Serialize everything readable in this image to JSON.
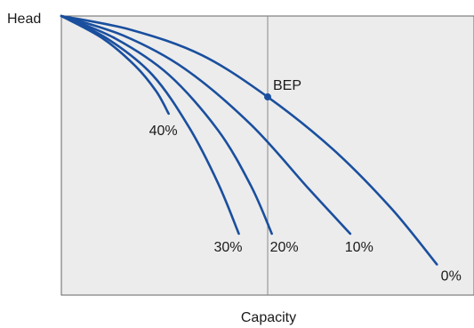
{
  "chart_data": {
    "type": "line",
    "xlabel": "Capacity",
    "ylabel": "Head",
    "xlim": [
      0,
      1
    ],
    "ylim": [
      0,
      1
    ],
    "grid": false,
    "colors": {
      "curve": "#1a4f9e",
      "plot_bg": "#ececec",
      "frame": "#666666",
      "bep_line": "#8a8a8a"
    },
    "series": [
      {
        "name": "0%",
        "x": [
          0,
          0.17,
          0.34,
          0.5,
          0.66,
          0.8,
          0.91
        ],
        "y": [
          1.0,
          0.95,
          0.86,
          0.71,
          0.52,
          0.31,
          0.11
        ]
      },
      {
        "name": "10%",
        "x": [
          0,
          0.15,
          0.3,
          0.46,
          0.6,
          0.7
        ],
        "y": [
          1.0,
          0.93,
          0.81,
          0.61,
          0.38,
          0.22
        ]
      },
      {
        "name": "20%",
        "x": [
          0,
          0.13,
          0.26,
          0.38,
          0.46,
          0.51
        ],
        "y": [
          1.0,
          0.92,
          0.79,
          0.59,
          0.39,
          0.22
        ]
      },
      {
        "name": "30%",
        "x": [
          0,
          0.11,
          0.22,
          0.31,
          0.38,
          0.43
        ],
        "y": [
          1.0,
          0.92,
          0.79,
          0.6,
          0.4,
          0.22
        ]
      },
      {
        "name": "40%",
        "x": [
          0,
          0.1,
          0.18,
          0.23,
          0.26
        ],
        "y": [
          1.0,
          0.92,
          0.82,
          0.73,
          0.65
        ]
      }
    ],
    "annotations": [
      {
        "text": "BEP",
        "x": 0.5,
        "y": 0.71
      }
    ],
    "bep_x": 0.5
  }
}
